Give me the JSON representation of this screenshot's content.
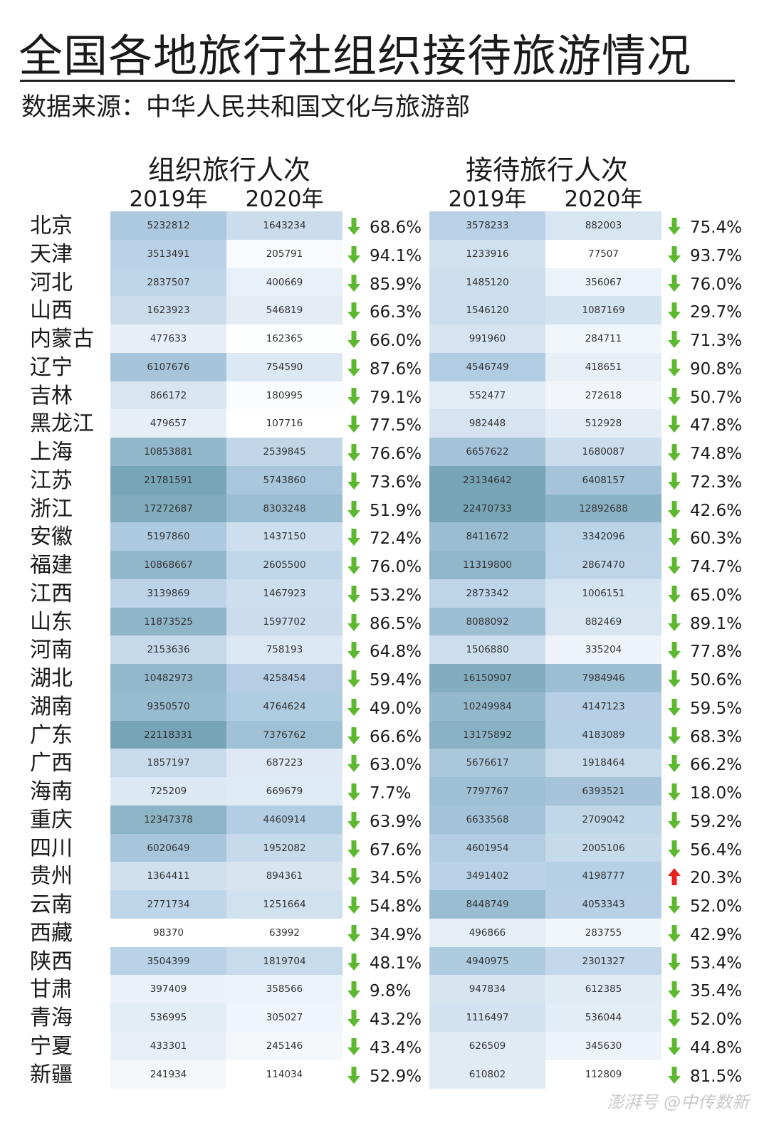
{
  "title": "全国各地旅行社组织接待旅游情况",
  "subtitle": "数据来源：中华人民共和国文化与旅游部",
  "watermark": "澎湃号 @中传数新",
  "colors": {
    "scale_low": "#ffffff",
    "scale_mid": "#b7d0e6",
    "scale_high": "#76a5b7",
    "down_arrow": "#5cb82e",
    "up_arrow": "#e8211a"
  },
  "chart_data": {
    "type": "table",
    "sections": [
      {
        "label": "组织旅行人次",
        "years": [
          "2019年",
          "2020年"
        ]
      },
      {
        "label": "接待旅行人次",
        "years": [
          "2019年",
          "2020年"
        ]
      }
    ],
    "rows": [
      {
        "province": "北京",
        "org2019": "5232812",
        "org2020": "1643234",
        "org_change": "68.6%",
        "org_dir": "down",
        "rec2019": "3578233",
        "rec2020": "882003",
        "rec_change": "75.4%",
        "rec_dir": "down"
      },
      {
        "province": "天津",
        "org2019": "3513491",
        "org2020": "205791",
        "org_change": "94.1%",
        "org_dir": "down",
        "rec2019": "1233916",
        "rec2020": "77507",
        "rec_change": "93.7%",
        "rec_dir": "down"
      },
      {
        "province": "河北",
        "org2019": "2837507",
        "org2020": "400669",
        "org_change": "85.9%",
        "org_dir": "down",
        "rec2019": "1485120",
        "rec2020": "356067",
        "rec_change": "76.0%",
        "rec_dir": "down"
      },
      {
        "province": "山西",
        "org2019": "1623923",
        "org2020": "546819",
        "org_change": "66.3%",
        "org_dir": "down",
        "rec2019": "1546120",
        "rec2020": "1087169",
        "rec_change": "29.7%",
        "rec_dir": "down"
      },
      {
        "province": "内蒙古",
        "org2019": "477633",
        "org2020": "162365",
        "org_change": "66.0%",
        "org_dir": "down",
        "rec2019": "991960",
        "rec2020": "284711",
        "rec_change": "71.3%",
        "rec_dir": "down"
      },
      {
        "province": "辽宁",
        "org2019": "6107676",
        "org2020": "754590",
        "org_change": "87.6%",
        "org_dir": "down",
        "rec2019": "4546749",
        "rec2020": "418651",
        "rec_change": "90.8%",
        "rec_dir": "down"
      },
      {
        "province": "吉林",
        "org2019": "866172",
        "org2020": "180995",
        "org_change": "79.1%",
        "org_dir": "down",
        "rec2019": "552477",
        "rec2020": "272618",
        "rec_change": "50.7%",
        "rec_dir": "down"
      },
      {
        "province": "黑龙江",
        "org2019": "479657",
        "org2020": "107716",
        "org_change": "77.5%",
        "org_dir": "down",
        "rec2019": "982448",
        "rec2020": "512928",
        "rec_change": "47.8%",
        "rec_dir": "down"
      },
      {
        "province": "上海",
        "org2019": "10853881",
        "org2020": "2539845",
        "org_change": "76.6%",
        "org_dir": "down",
        "rec2019": "6657622",
        "rec2020": "1680087",
        "rec_change": "74.8%",
        "rec_dir": "down"
      },
      {
        "province": "江苏",
        "org2019": "21781591",
        "org2020": "5743860",
        "org_change": "73.6%",
        "org_dir": "down",
        "rec2019": "23134642",
        "rec2020": "6408157",
        "rec_change": "72.3%",
        "rec_dir": "down"
      },
      {
        "province": "浙江",
        "org2019": "17272687",
        "org2020": "8303248",
        "org_change": "51.9%",
        "org_dir": "down",
        "rec2019": "22470733",
        "rec2020": "12892688",
        "rec_change": "42.6%",
        "rec_dir": "down"
      },
      {
        "province": "安徽",
        "org2019": "5197860",
        "org2020": "1437150",
        "org_change": "72.4%",
        "org_dir": "down",
        "rec2019": "8411672",
        "rec2020": "3342096",
        "rec_change": "60.3%",
        "rec_dir": "down"
      },
      {
        "province": "福建",
        "org2019": "10868667",
        "org2020": "2605500",
        "org_change": "76.0%",
        "org_dir": "down",
        "rec2019": "11319800",
        "rec2020": "2867470",
        "rec_change": "74.7%",
        "rec_dir": "down"
      },
      {
        "province": "江西",
        "org2019": "3139869",
        "org2020": "1467923",
        "org_change": "53.2%",
        "org_dir": "down",
        "rec2019": "2873342",
        "rec2020": "1006151",
        "rec_change": "65.0%",
        "rec_dir": "down"
      },
      {
        "province": "山东",
        "org2019": "11873525",
        "org2020": "1597702",
        "org_change": "86.5%",
        "org_dir": "down",
        "rec2019": "8088092",
        "rec2020": "882469",
        "rec_change": "89.1%",
        "rec_dir": "down"
      },
      {
        "province": "河南",
        "org2019": "2153636",
        "org2020": "758193",
        "org_change": "64.8%",
        "org_dir": "down",
        "rec2019": "1506880",
        "rec2020": "335204",
        "rec_change": "77.8%",
        "rec_dir": "down"
      },
      {
        "province": "湖北",
        "org2019": "10482973",
        "org2020": "4258454",
        "org_change": "59.4%",
        "org_dir": "down",
        "rec2019": "16150907",
        "rec2020": "7984946",
        "rec_change": "50.6%",
        "rec_dir": "down"
      },
      {
        "province": "湖南",
        "org2019": "9350570",
        "org2020": "4764624",
        "org_change": "49.0%",
        "org_dir": "down",
        "rec2019": "10249984",
        "rec2020": "4147123",
        "rec_change": "59.5%",
        "rec_dir": "down"
      },
      {
        "province": "广东",
        "org2019": "22118331",
        "org2020": "7376762",
        "org_change": "66.6%",
        "org_dir": "down",
        "rec2019": "13175892",
        "rec2020": "4183089",
        "rec_change": "68.3%",
        "rec_dir": "down"
      },
      {
        "province": "广西",
        "org2019": "1857197",
        "org2020": "687223",
        "org_change": "63.0%",
        "org_dir": "down",
        "rec2019": "5676617",
        "rec2020": "1918464",
        "rec_change": "66.2%",
        "rec_dir": "down"
      },
      {
        "province": "海南",
        "org2019": "725209",
        "org2020": "669679",
        "org_change": "7.7%",
        "org_dir": "down",
        "rec2019": "7797767",
        "rec2020": "6393521",
        "rec_change": "18.0%",
        "rec_dir": "down"
      },
      {
        "province": "重庆",
        "org2019": "12347378",
        "org2020": "4460914",
        "org_change": "63.9%",
        "org_dir": "down",
        "rec2019": "6633568",
        "rec2020": "2709042",
        "rec_change": "59.2%",
        "rec_dir": "down"
      },
      {
        "province": "四川",
        "org2019": "6020649",
        "org2020": "1952082",
        "org_change": "67.6%",
        "org_dir": "down",
        "rec2019": "4601954",
        "rec2020": "2005106",
        "rec_change": "56.4%",
        "rec_dir": "down"
      },
      {
        "province": "贵州",
        "org2019": "1364411",
        "org2020": "894361",
        "org_change": "34.5%",
        "org_dir": "down",
        "rec2019": "3491402",
        "rec2020": "4198777",
        "rec_change": "20.3%",
        "rec_dir": "up"
      },
      {
        "province": "云南",
        "org2019": "2771734",
        "org2020": "1251664",
        "org_change": "54.8%",
        "org_dir": "down",
        "rec2019": "8448749",
        "rec2020": "4053343",
        "rec_change": "52.0%",
        "rec_dir": "down"
      },
      {
        "province": "西藏",
        "org2019": "98370",
        "org2020": "63992",
        "org_change": "34.9%",
        "org_dir": "down",
        "rec2019": "496866",
        "rec2020": "283755",
        "rec_change": "42.9%",
        "rec_dir": "down"
      },
      {
        "province": "陕西",
        "org2019": "3504399",
        "org2020": "1819704",
        "org_change": "48.1%",
        "org_dir": "down",
        "rec2019": "4940975",
        "rec2020": "2301327",
        "rec_change": "53.4%",
        "rec_dir": "down"
      },
      {
        "province": "甘肃",
        "org2019": "397409",
        "org2020": "358566",
        "org_change": "9.8%",
        "org_dir": "down",
        "rec2019": "947834",
        "rec2020": "612385",
        "rec_change": "35.4%",
        "rec_dir": "down"
      },
      {
        "province": "青海",
        "org2019": "536995",
        "org2020": "305027",
        "org_change": "43.2%",
        "org_dir": "down",
        "rec2019": "1116497",
        "rec2020": "536044",
        "rec_change": "52.0%",
        "rec_dir": "down"
      },
      {
        "province": "宁夏",
        "org2019": "433301",
        "org2020": "245146",
        "org_change": "43.4%",
        "org_dir": "down",
        "rec2019": "626509",
        "rec2020": "345630",
        "rec_change": "44.8%",
        "rec_dir": "down"
      },
      {
        "province": "新疆",
        "org2019": "241934",
        "org2020": "114034",
        "org_change": "52.9%",
        "org_dir": "down",
        "rec2019": "610802",
        "rec2020": "112809",
        "rec_change": "81.5%",
        "rec_dir": "down"
      }
    ]
  }
}
